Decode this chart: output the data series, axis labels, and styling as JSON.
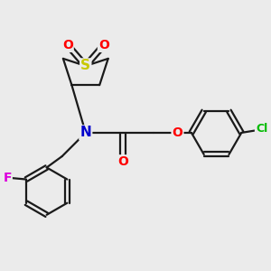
{
  "bg_color": "#ebebeb",
  "bond_color": "#1a1a1a",
  "bond_width": 1.6,
  "atom_colors": {
    "S": "#c8c800",
    "O": "#ff0000",
    "N": "#0000cc",
    "F": "#dd00dd",
    "Cl": "#00bb00",
    "C": "#1a1a1a"
  },
  "font_size": 10
}
